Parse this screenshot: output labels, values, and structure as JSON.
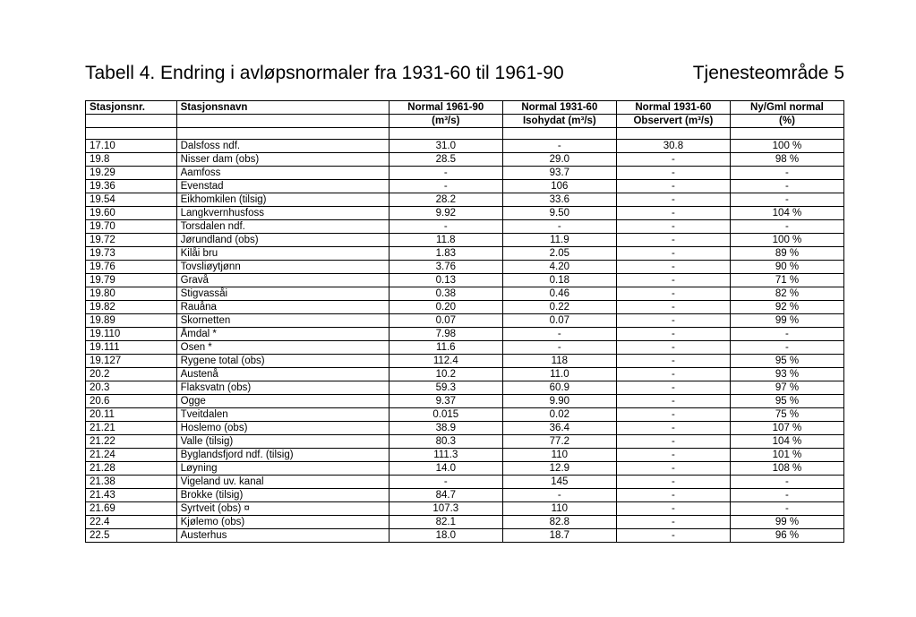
{
  "header": {
    "title": "Tabell 4. Endring i avløpsnormaler fra 1931-60 til 1961-90",
    "area": "Tjenesteområde 5"
  },
  "table": {
    "columns": {
      "c1": "Stasjonsnr.",
      "c2": "Stasjonsnavn",
      "c3": "Normal 1961-90",
      "c4": "Normal 1931-60",
      "c5": "Normal 1931-60",
      "c6": "Ny/Gml normal"
    },
    "subcolumns": {
      "c1": "",
      "c2": "",
      "c3": "(m³/s)",
      "c4": "Isohydat (m³/s)",
      "c5": "Observert (m³/s)",
      "c6": "(%)"
    },
    "rows": [
      {
        "nr": "17.10",
        "name": "Dalsfoss ndf.",
        "n6190": "31.0",
        "iso": "-",
        "obs": "30.8",
        "pct": "100 %"
      },
      {
        "nr": "19.8",
        "name": "Nisser dam (obs)",
        "n6190": "28.5",
        "iso": "29.0",
        "obs": "-",
        "pct": "98 %"
      },
      {
        "nr": "19.29",
        "name": "Aamfoss",
        "n6190": "-",
        "iso": "93.7",
        "obs": "-",
        "pct": "-"
      },
      {
        "nr": "19.36",
        "name": "Evenstad",
        "n6190": "-",
        "iso": "106",
        "obs": "-",
        "pct": "-"
      },
      {
        "nr": "19.54",
        "name": "Eikhomkilen (tilsig)",
        "n6190": "28.2",
        "iso": "33.6",
        "obs": "-",
        "pct": "-"
      },
      {
        "nr": "19.60",
        "name": "Langkvernhusfoss",
        "n6190": "9.92",
        "iso": "9.50",
        "obs": "-",
        "pct": "104 %"
      },
      {
        "nr": "19.70",
        "name": "Torsdalen ndf.",
        "n6190": "-",
        "iso": "-",
        "obs": "-",
        "pct": "-"
      },
      {
        "nr": "19.72",
        "name": "Jørundland (obs)",
        "n6190": "11.8",
        "iso": "11.9",
        "obs": "-",
        "pct": "100 %"
      },
      {
        "nr": "19.73",
        "name": "Kilåi bru",
        "n6190": "1.83",
        "iso": "2.05",
        "obs": "-",
        "pct": "89 %"
      },
      {
        "nr": "19.76",
        "name": "Tovsliøytjønn",
        "n6190": "3.76",
        "iso": "4.20",
        "obs": "-",
        "pct": "90 %"
      },
      {
        "nr": "19.79",
        "name": "Gravå",
        "n6190": "0.13",
        "iso": "0.18",
        "obs": "-",
        "pct": "71 %"
      },
      {
        "nr": "19.80",
        "name": "Stigvassåi",
        "n6190": "0.38",
        "iso": "0.46",
        "obs": "-",
        "pct": "82 %"
      },
      {
        "nr": "19.82",
        "name": "Rauåna",
        "n6190": "0.20",
        "iso": "0.22",
        "obs": "-",
        "pct": "92 %"
      },
      {
        "nr": "19.89",
        "name": "Skornetten",
        "n6190": "0.07",
        "iso": "0.07",
        "obs": "-",
        "pct": "99 %"
      },
      {
        "nr": "19.110",
        "name": "Åmdal *",
        "n6190": "7.98",
        "iso": "-",
        "obs": "-",
        "pct": "-"
      },
      {
        "nr": "19.111",
        "name": "Osen *",
        "n6190": "11.6",
        "iso": "-",
        "obs": "-",
        "pct": "-"
      },
      {
        "nr": "19.127",
        "name": "Rygene total (obs)",
        "n6190": "112.4",
        "iso": "118",
        "obs": "-",
        "pct": "95 %"
      },
      {
        "nr": "20.2",
        "name": "Austenå",
        "n6190": "10.2",
        "iso": "11.0",
        "obs": "-",
        "pct": "93 %"
      },
      {
        "nr": "20.3",
        "name": "Flaksvatn (obs)",
        "n6190": "59.3",
        "iso": "60.9",
        "obs": "-",
        "pct": "97 %"
      },
      {
        "nr": "20.6",
        "name": "Ogge",
        "n6190": "9.37",
        "iso": "9.90",
        "obs": "-",
        "pct": "95 %"
      },
      {
        "nr": "20.11",
        "name": "Tveitdalen",
        "n6190": "0.015",
        "iso": "0.02",
        "obs": "-",
        "pct": "75 %"
      },
      {
        "nr": "21.21",
        "name": "Hoslemo (obs)",
        "n6190": "38.9",
        "iso": "36.4",
        "obs": "-",
        "pct": "107 %"
      },
      {
        "nr": "21.22",
        "name": "Valle (tilsig)",
        "n6190": "80.3",
        "iso": "77.2",
        "obs": "-",
        "pct": "104 %"
      },
      {
        "nr": "21.24",
        "name": "Byglandsfjord ndf. (tilsig)",
        "n6190": "111.3",
        "iso": "110",
        "obs": "-",
        "pct": "101 %"
      },
      {
        "nr": "21.28",
        "name": "Løyning",
        "n6190": "14.0",
        "iso": "12.9",
        "obs": "-",
        "pct": "108 %"
      },
      {
        "nr": "21.38",
        "name": "Vigeland uv. kanal",
        "n6190": "-",
        "iso": "145",
        "obs": "-",
        "pct": "-"
      },
      {
        "nr": "21.43",
        "name": "Brokke (tilsig)",
        "n6190": "84.7",
        "iso": "-",
        "obs": "-",
        "pct": "-"
      },
      {
        "nr": "21.69",
        "name": "Syrtveit (obs) ¤",
        "n6190": "107.3",
        "iso": "110",
        "obs": "-",
        "pct": "-"
      },
      {
        "nr": "22.4",
        "name": "Kjølemo (obs)",
        "n6190": "82.1",
        "iso": "82.8",
        "obs": "-",
        "pct": "99 %"
      },
      {
        "nr": "22.5",
        "name": "Austerhus",
        "n6190": "18.0",
        "iso": "18.7",
        "obs": "-",
        "pct": "96 %"
      }
    ]
  },
  "style": {
    "font_family": "Arial",
    "title_fontsize": 21,
    "table_fontsize": 11.5,
    "border_color": "#000000",
    "background_color": "#ffffff",
    "text_color": "#000000",
    "col_widths_pct": [
      12,
      28,
      15,
      15,
      15,
      15
    ]
  }
}
